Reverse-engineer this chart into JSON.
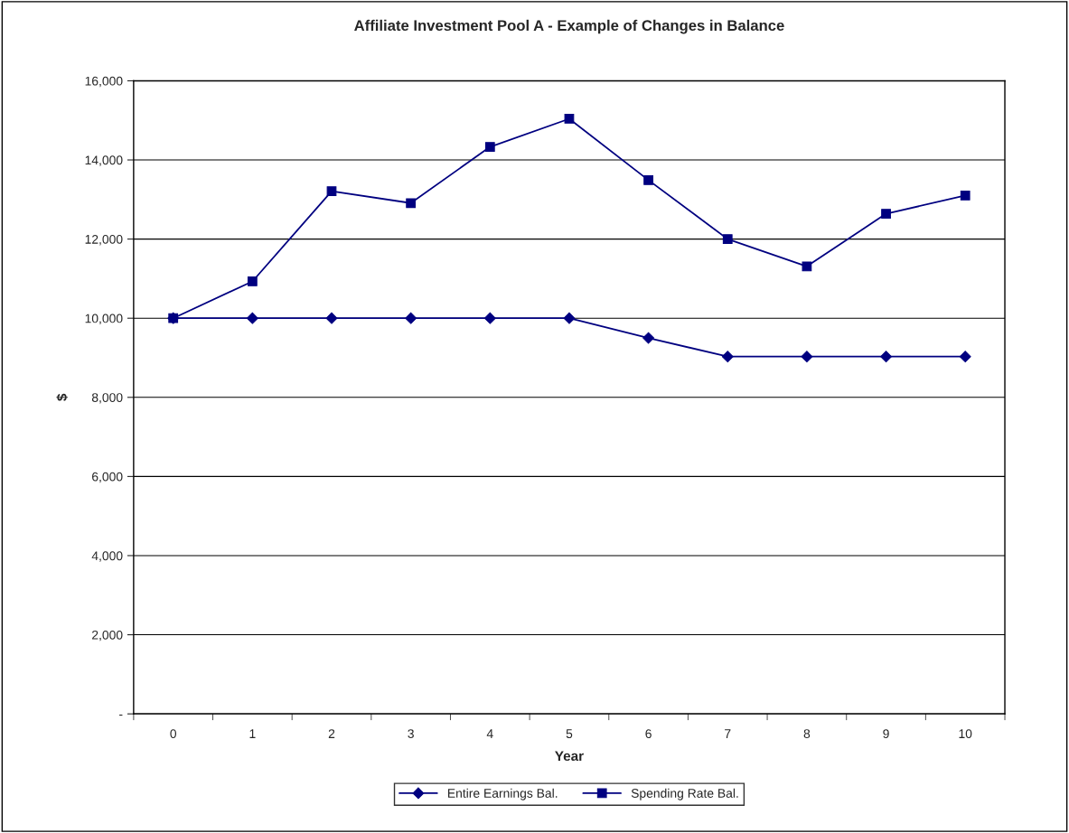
{
  "chart_data": {
    "type": "line",
    "title": "Affiliate Investment Pool A - Example of Changes in Balance",
    "xlabel": "Year",
    "ylabel": "$",
    "categories": [
      "0",
      "1",
      "2",
      "3",
      "4",
      "5",
      "6",
      "7",
      "8",
      "9",
      "10"
    ],
    "series": [
      {
        "name": "Entire Earnings Bal.",
        "color": "#000080",
        "marker": "diamond",
        "values": [
          10000,
          10000,
          10000,
          10000,
          10000,
          10000,
          9500,
          9030,
          9030,
          9030,
          9030
        ]
      },
      {
        "name": "Spending Rate Bal.",
        "color": "#000080",
        "marker": "square",
        "values": [
          10000,
          10930,
          13210,
          12910,
          14330,
          15040,
          13490,
          12000,
          11310,
          12640,
          13100
        ]
      }
    ],
    "ylim": [
      0,
      16000
    ],
    "yticks": [
      {
        "value": 0,
        "label": "-"
      },
      {
        "value": 2000,
        "label": "2,000"
      },
      {
        "value": 4000,
        "label": "4,000"
      },
      {
        "value": 6000,
        "label": "6,000"
      },
      {
        "value": 8000,
        "label": "8,000"
      },
      {
        "value": 10000,
        "label": "10,000"
      },
      {
        "value": 12000,
        "label": "12,000"
      },
      {
        "value": 14000,
        "label": "14,000"
      },
      {
        "value": 16000,
        "label": "16,000"
      }
    ],
    "grid": "y",
    "legend": "bottom",
    "line_style": "solid"
  }
}
